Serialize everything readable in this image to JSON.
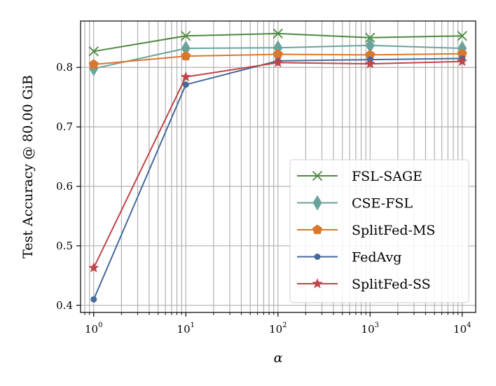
{
  "chart_data": {
    "type": "line",
    "xscale": "log",
    "xlabel": "α",
    "ylabel": "Test Accuracy @ 80.00 GiB",
    "xlim": [
      0.72,
      14000
    ],
    "ylim": [
      0.388,
      0.878
    ],
    "grid": true,
    "legend_position": "lower-right",
    "x": [
      1,
      10,
      100,
      1000,
      10000
    ],
    "xticks": [
      {
        "value": 1,
        "base": "10",
        "exp": "0"
      },
      {
        "value": 10,
        "base": "10",
        "exp": "1"
      },
      {
        "value": 100,
        "base": "10",
        "exp": "2"
      },
      {
        "value": 1000,
        "base": "10",
        "exp": "3"
      },
      {
        "value": 10000,
        "base": "10",
        "exp": "4"
      }
    ],
    "yticks": [
      {
        "value": 0.4,
        "label": "0.4"
      },
      {
        "value": 0.5,
        "label": "0.5"
      },
      {
        "value": 0.6,
        "label": "0.6"
      },
      {
        "value": 0.7,
        "label": "0.7"
      },
      {
        "value": 0.8,
        "label": "0.8"
      }
    ],
    "series": [
      {
        "name": "FSL-SAGE",
        "color": "#4b8a3e",
        "marker": "x",
        "values": [
          0.827,
          0.853,
          0.857,
          0.85,
          0.853
        ]
      },
      {
        "name": "CSE-FSL",
        "color": "#6aa39b",
        "marker": "diamond",
        "values": [
          0.798,
          0.832,
          0.833,
          0.837,
          0.832
        ]
      },
      {
        "name": "SplitFed-MS",
        "color": "#d9782d",
        "marker": "pentagon",
        "values": [
          0.805,
          0.819,
          0.822,
          0.821,
          0.823
        ]
      },
      {
        "name": "FedAvg",
        "color": "#466a9b",
        "marker": "circle",
        "values": [
          0.41,
          0.771,
          0.811,
          0.813,
          0.815
        ]
      },
      {
        "name": "SplitFed-SS",
        "color": "#c0454a",
        "marker": "star",
        "values": [
          0.463,
          0.784,
          0.808,
          0.806,
          0.81
        ]
      }
    ]
  }
}
